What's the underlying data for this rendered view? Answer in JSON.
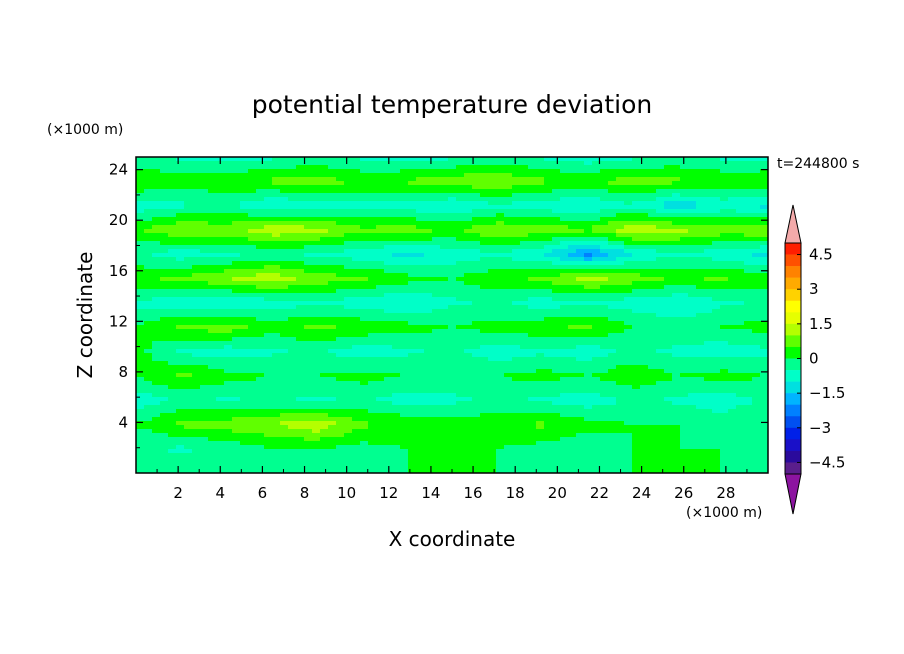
{
  "chart_data": {
    "type": "heatmap",
    "title": "potential temperature deviation",
    "xlabel": "X coordinate",
    "ylabel": "Z coordinate",
    "x_unit": "(×1000 m)",
    "y_unit": "(×1000 m)",
    "time_label": "t=244800 s",
    "xlim": [
      0,
      30
    ],
    "ylim": [
      0,
      25
    ],
    "x_ticks": [
      "2",
      "4",
      "6",
      "8",
      "10",
      "12",
      "14",
      "16",
      "18",
      "20",
      "22",
      "24",
      "26",
      "28"
    ],
    "y_ticks": [
      "4",
      "8",
      "12",
      "16",
      "20",
      "24"
    ],
    "colorbar": {
      "levels": [
        -5.0,
        -4.5,
        -4.0,
        -3.5,
        -3.0,
        -2.5,
        -2.0,
        -1.5,
        -1.0,
        -0.5,
        0.0,
        0.5,
        1.0,
        1.5,
        2.0,
        2.5,
        3.0,
        3.5,
        4.0,
        4.5,
        5.0
      ],
      "tick_labels": [
        "4.5",
        "3",
        "1.5",
        "0",
        "−1.5",
        "−3",
        "−4.5"
      ],
      "colors": [
        "#5a1e8c",
        "#2a0a9c",
        "#1a10c8",
        "#0020e8",
        "#0050f0",
        "#0080ff",
        "#00b4ff",
        "#00e0e0",
        "#00ffc8",
        "#00ff90",
        "#00ff00",
        "#60ff00",
        "#b4ff00",
        "#e6ff00",
        "#ffff00",
        "#ffd200",
        "#ffaa00",
        "#ff8200",
        "#ff5000",
        "#ff1e00"
      ],
      "under_color": "#8c14a0",
      "over_color": "#f4aaaa"
    },
    "field": {
      "z_rows": [
        [
          0,
          0,
          0,
          -0.2,
          -0.2,
          0,
          0,
          0,
          0,
          0,
          0,
          0,
          0,
          0,
          0
        ],
        [
          -0.4,
          -0.6,
          -0.4,
          0,
          0,
          -0.2,
          0,
          0,
          0,
          -0.2,
          -0.4,
          0,
          0,
          0,
          -0.4
        ],
        [
          0,
          0.6,
          0.8,
          1.0,
          1.4,
          0.6,
          0.4,
          0.2,
          0.4,
          0.6,
          0.2,
          0,
          0,
          -0.2,
          0
        ],
        [
          -0.8,
          -0.4,
          -0.6,
          -0.4,
          -0.6,
          -0.4,
          -0.8,
          -0.6,
          -0.4,
          -0.6,
          -0.8,
          -0.4,
          -0.6,
          -0.8,
          -0.4
        ],
        [
          0,
          0.6,
          0.2,
          0,
          0,
          0.2,
          0,
          -0.2,
          0,
          0.2,
          0,
          0.4,
          0,
          0.2,
          0
        ],
        [
          0.2,
          -0.6,
          -0.8,
          -0.6,
          -0.4,
          -0.8,
          -0.6,
          -0.4,
          -0.8,
          -0.6,
          -0.8,
          -0.4,
          -0.6,
          -0.8,
          -0.6
        ],
        [
          0,
          0.6,
          0.8,
          0.2,
          0.6,
          0.4,
          0.2,
          0,
          0.2,
          0.4,
          0.6,
          0,
          -0.2,
          0,
          0.2
        ],
        [
          -0.6,
          -0.8,
          -1.0,
          -0.8,
          -0.6,
          -0.8,
          -1.0,
          -0.6,
          -0.4,
          -0.8,
          -0.6,
          -0.8,
          -1.0,
          -0.6,
          -0.4
        ],
        [
          0.4,
          0.6,
          1.0,
          1.4,
          0.8,
          0.6,
          0.2,
          0,
          0.4,
          0.6,
          1.2,
          0.8,
          0.4,
          0.6,
          0.2
        ],
        [
          -0.4,
          -0.8,
          -0.6,
          -0.4,
          -0.6,
          -0.8,
          -1.2,
          -0.8,
          -0.6,
          -1.0,
          -2.2,
          -1.0,
          -0.6,
          -0.8,
          -1.2
        ],
        [
          0.4,
          1.0,
          0.8,
          1.4,
          1.2,
          0.6,
          0.8,
          0.4,
          1.0,
          0.8,
          0.6,
          1.4,
          1.2,
          0.8,
          1.0
        ],
        [
          -0.8,
          -0.6,
          -0.4,
          -1.0,
          -0.8,
          -0.6,
          -0.8,
          -1.0,
          -0.6,
          -0.8,
          -1.0,
          -0.6,
          -1.4,
          -0.8,
          -1.2
        ],
        [
          0.6,
          0.2,
          0.4,
          0.6,
          0.8,
          0.4,
          0.6,
          0.8,
          1.0,
          0.6,
          0.4,
          0.8,
          0.6,
          0.4,
          0.6
        ],
        [
          -0.4,
          -0.6,
          -0.8,
          -0.6,
          -0.4,
          -0.6,
          -0.8,
          -0.6,
          -0.4,
          -0.6,
          -0.8,
          -0.6,
          -0.4,
          -0.6,
          -0.8
        ]
      ]
    }
  }
}
